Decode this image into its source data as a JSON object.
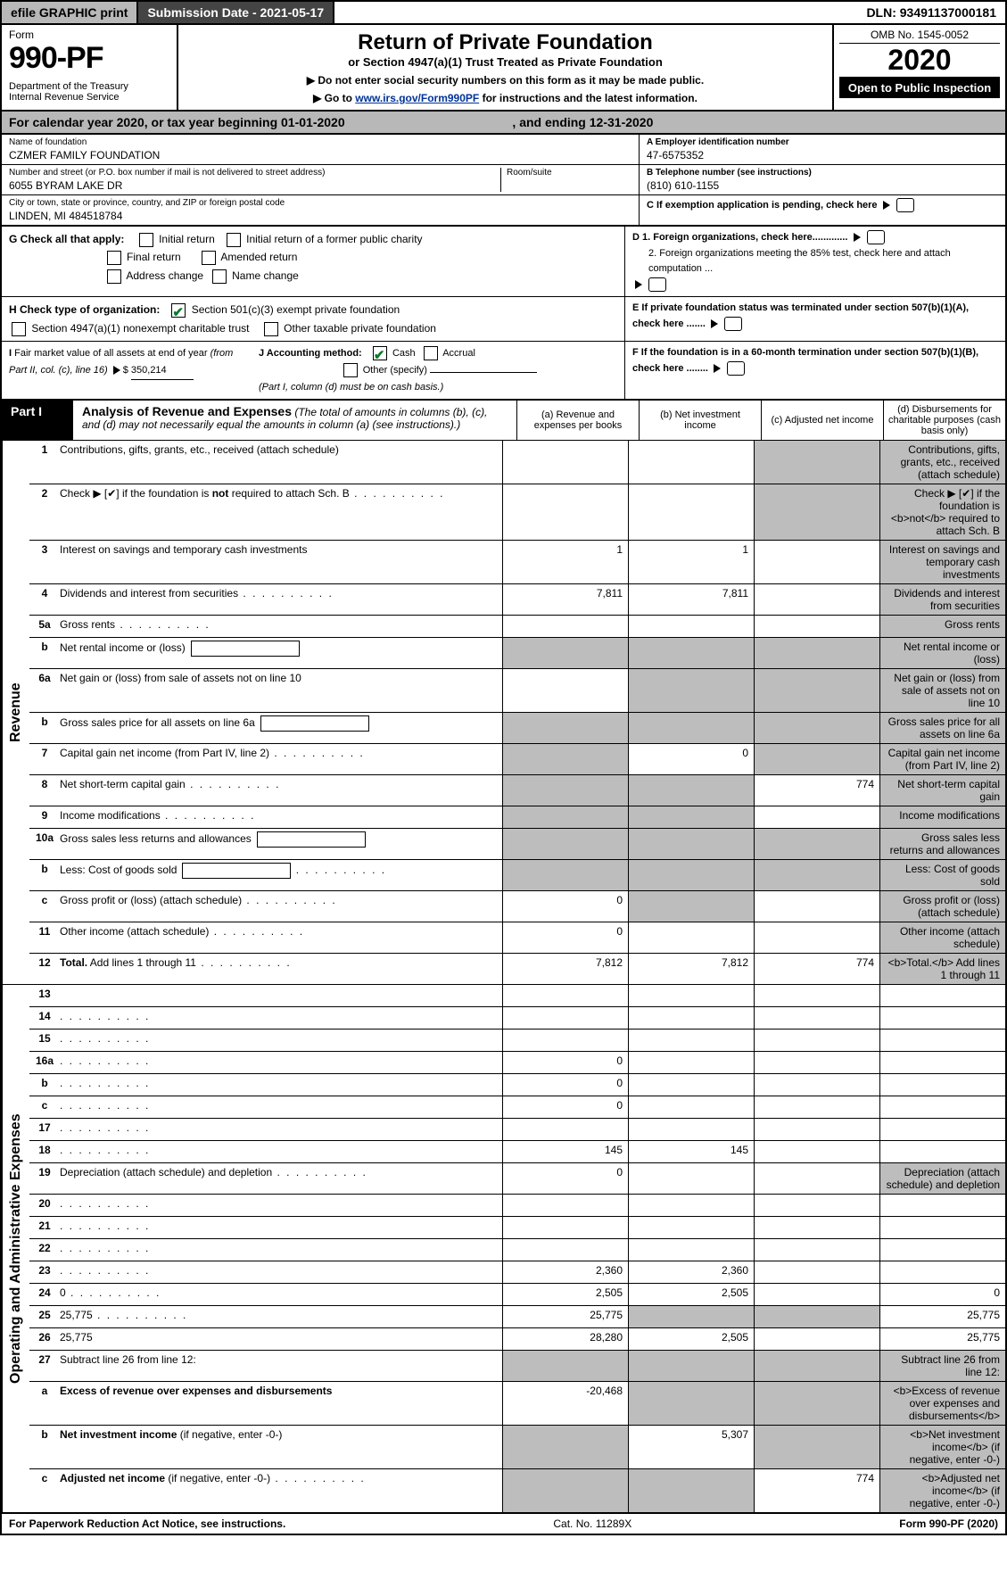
{
  "colors": {
    "header_gray": "#b8b8b8",
    "dark_btn": "#444444",
    "black": "#000000",
    "link": "#003399",
    "check_green": "#0a7a2a",
    "shade_cell": "#bdbdbd"
  },
  "topbar": {
    "efile": "efile GRAPHIC print",
    "submission": "Submission Date - 2021-05-17",
    "dln": "DLN: 93491137000181"
  },
  "header": {
    "form_word": "Form",
    "form_num": "990-PF",
    "dept": "Department of the Treasury\nInternal Revenue Service",
    "title": "Return of Private Foundation",
    "subtitle": "or Section 4947(a)(1) Trust Treated as Private Foundation",
    "inst1": "▶ Do not enter social security numbers on this form as it may be made public.",
    "inst2_pre": "▶ Go to ",
    "inst2_link": "www.irs.gov/Form990PF",
    "inst2_post": " for instructions and the latest information.",
    "omb": "OMB No. 1545-0052",
    "year": "2020",
    "open": "Open to Public Inspection"
  },
  "calyear": {
    "pre": "For calendar year 2020, or tax year beginning ",
    "begin": "01-01-2020",
    "mid": ", and ending ",
    "end": "12-31-2020"
  },
  "id": {
    "name_lbl": "Name of foundation",
    "name_val": "CZMER FAMILY FOUNDATION",
    "addr_lbl": "Number and street (or P.O. box number if mail is not delivered to street address)",
    "addr_val": "6055 BYRAM LAKE DR",
    "room_lbl": "Room/suite",
    "city_lbl": "City or town, state or province, country, and ZIP or foreign postal code",
    "city_val": "LINDEN, MI  484518784",
    "ein_lbl": "A Employer identification number",
    "ein_val": "47-6575352",
    "tel_lbl": "B Telephone number (see instructions)",
    "tel_val": "(810) 610-1155",
    "c_lbl": "C  If exemption application is pending, check here",
    "d1": "D 1. Foreign organizations, check here.............",
    "d2": "2. Foreign organizations meeting the 85% test, check here and attach computation ...",
    "e_lbl": "E  If private foundation status was terminated under section 507(b)(1)(A), check here .......",
    "f_lbl": "F  If the foundation is in a 60-month termination under section 507(b)(1)(B), check here ........"
  },
  "g": {
    "label": "G Check all that apply:",
    "initial": "Initial return",
    "initial_former": "Initial return of a former public charity",
    "final": "Final return",
    "amended": "Amended return",
    "addr_change": "Address change",
    "name_change": "Name change"
  },
  "h": {
    "label": "H Check type of organization:",
    "opt1": "Section 501(c)(3) exempt private foundation",
    "opt2": "Section 4947(a)(1) nonexempt charitable trust",
    "opt3": "Other taxable private foundation"
  },
  "i": {
    "label_pre": "I Fair market value of all assets at end of year ",
    "label_mid": "(from Part II, col. (c), line 16)",
    "arrow": "▶ $",
    "value": "350,214"
  },
  "j": {
    "label": "J Accounting method:",
    "cash": "Cash",
    "accrual": "Accrual",
    "other": "Other (specify)",
    "note": "(Part I, column (d) must be on cash basis.)"
  },
  "part1": {
    "label": "Part I",
    "title": "Analysis of Revenue and Expenses",
    "title_note": " (The total of amounts in columns (b), (c), and (d) may not necessarily equal the amounts in column (a) (see instructions).)",
    "col_a": "(a) Revenue and expenses per books",
    "col_b": "(b) Net investment income",
    "col_c": "(c) Adjusted net income",
    "col_d": "(d) Disbursements for charitable purposes (cash basis only)"
  },
  "side": {
    "revenue": "Revenue",
    "expenses": "Operating and Administrative Expenses"
  },
  "rows": [
    {
      "n": "1",
      "d": "Contributions, gifts, grants, etc., received (attach schedule)",
      "a": "",
      "b": "",
      "c_shade": true,
      "d_shade": true
    },
    {
      "n": "2",
      "d": "Check ▶ [✔] if the foundation is <b>not</b> required to attach Sch. B",
      "dots": true,
      "a": "",
      "b": "",
      "c_shade": true,
      "d_shade": true,
      "nocellsab": true
    },
    {
      "n": "3",
      "d": "Interest on savings and temporary cash investments",
      "a": "1",
      "b": "1",
      "c": "",
      "d_shade": true
    },
    {
      "n": "4",
      "d": "Dividends and interest from securities",
      "dots": true,
      "a": "7,811",
      "b": "7,811",
      "c": "",
      "d_shade": true
    },
    {
      "n": "5a",
      "d": "Gross rents",
      "dots": true,
      "a": "",
      "b": "",
      "c": "",
      "d_shade": true
    },
    {
      "n": "b",
      "d": "Net rental income or (loss)",
      "box": true,
      "a_shade": true,
      "b_shade": true,
      "c_shade": true,
      "d_shade": true
    },
    {
      "n": "6a",
      "d": "Net gain or (loss) from sale of assets not on line 10",
      "a": "",
      "b_shade": true,
      "c_shade": true,
      "d_shade": true
    },
    {
      "n": "b",
      "d": "Gross sales price for all assets on line 6a",
      "box": true,
      "a_shade": true,
      "b_shade": true,
      "c_shade": true,
      "d_shade": true
    },
    {
      "n": "7",
      "d": "Capital gain net income (from Part IV, line 2)",
      "dots": true,
      "a_shade": true,
      "b": "0",
      "c_shade": true,
      "d_shade": true
    },
    {
      "n": "8",
      "d": "Net short-term capital gain",
      "dots": true,
      "a_shade": true,
      "b_shade": true,
      "c": "774",
      "d_shade": true
    },
    {
      "n": "9",
      "d": "Income modifications",
      "dots": true,
      "a_shade": true,
      "b_shade": true,
      "c": "",
      "d_shade": true
    },
    {
      "n": "10a",
      "d": "Gross sales less returns and allowances",
      "box": true,
      "a_shade": true,
      "b_shade": true,
      "c_shade": true,
      "d_shade": true
    },
    {
      "n": "b",
      "d": "Less: Cost of goods sold",
      "dots": true,
      "box": true,
      "a_shade": true,
      "b_shade": true,
      "c_shade": true,
      "d_shade": true
    },
    {
      "n": "c",
      "d": "Gross profit or (loss) (attach schedule)",
      "dots": true,
      "a": "0",
      "b_shade": true,
      "c": "",
      "d_shade": true
    },
    {
      "n": "11",
      "d": "Other income (attach schedule)",
      "dots": true,
      "a": "0",
      "b": "",
      "c": "",
      "d_shade": true
    },
    {
      "n": "12",
      "d": "<b>Total.</b> Add lines 1 through 11",
      "dots": true,
      "a": "7,812",
      "b": "7,812",
      "c": "774",
      "d_shade": true
    }
  ],
  "rows2": [
    {
      "n": "13",
      "d": "",
      "a": "",
      "b": "",
      "c": ""
    },
    {
      "n": "14",
      "d": "",
      "dots": true,
      "a": "",
      "b": "",
      "c": ""
    },
    {
      "n": "15",
      "d": "",
      "dots": true,
      "a": "",
      "b": "",
      "c": ""
    },
    {
      "n": "16a",
      "d": "",
      "dots": true,
      "a": "0",
      "b": "",
      "c": ""
    },
    {
      "n": "b",
      "d": "",
      "dots": true,
      "a": "0",
      "b": "",
      "c": ""
    },
    {
      "n": "c",
      "d": "",
      "dots": true,
      "a": "0",
      "b": "",
      "c": ""
    },
    {
      "n": "17",
      "d": "",
      "dots": true,
      "a": "",
      "b": "",
      "c": ""
    },
    {
      "n": "18",
      "d": "",
      "dots": true,
      "a": "145",
      "b": "145",
      "c": ""
    },
    {
      "n": "19",
      "d": "Depreciation (attach schedule) and depletion",
      "dots": true,
      "a": "0",
      "b": "",
      "c": "",
      "d_shade": true
    },
    {
      "n": "20",
      "d": "",
      "dots": true,
      "a": "",
      "b": "",
      "c": ""
    },
    {
      "n": "21",
      "d": "",
      "dots": true,
      "a": "",
      "b": "",
      "c": ""
    },
    {
      "n": "22",
      "d": "",
      "dots": true,
      "a": "",
      "b": "",
      "c": ""
    },
    {
      "n": "23",
      "d": "",
      "dots": true,
      "a": "2,360",
      "b": "2,360",
      "c": ""
    },
    {
      "n": "24",
      "d": "0",
      "dots": true,
      "a": "2,505",
      "b": "2,505",
      "c": ""
    },
    {
      "n": "25",
      "d": "25,775",
      "dots": true,
      "a": "25,775",
      "b_shade": true,
      "c_shade": true
    },
    {
      "n": "26",
      "d": "25,775",
      "a": "28,280",
      "b": "2,505",
      "c": ""
    },
    {
      "n": "27",
      "d": "Subtract line 26 from line 12:",
      "a_shade": true,
      "b_shade": true,
      "c_shade": true,
      "d_shade": true
    },
    {
      "n": "a",
      "d": "<b>Excess of revenue over expenses and disbursements</b>",
      "a": "-20,468",
      "b_shade": true,
      "c_shade": true,
      "d_shade": true
    },
    {
      "n": "b",
      "d": "<b>Net investment income</b> (if negative, enter -0-)",
      "a_shade": true,
      "b": "5,307",
      "c_shade": true,
      "d_shade": true
    },
    {
      "n": "c",
      "d": "<b>Adjusted net income</b> (if negative, enter -0-)",
      "dots": true,
      "a_shade": true,
      "b_shade": true,
      "c": "774",
      "d_shade": true
    }
  ],
  "footer": {
    "left": "For Paperwork Reduction Act Notice, see instructions.",
    "mid": "Cat. No. 11289X",
    "right": "Form 990-PF (2020)"
  }
}
